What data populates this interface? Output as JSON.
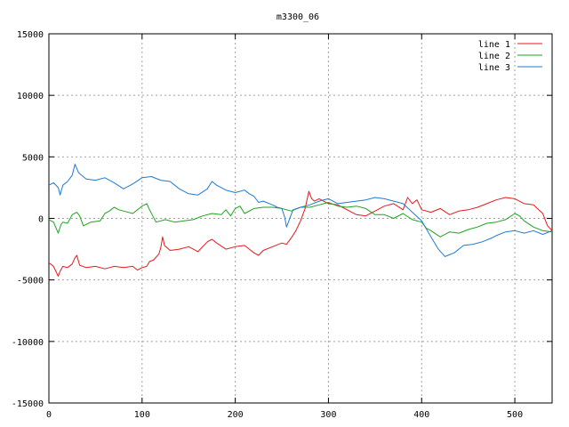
{
  "chart_data": {
    "type": "line",
    "title": "m3300_06",
    "xlabel": "",
    "ylabel": "",
    "xlim": [
      0,
      540
    ],
    "ylim": [
      -15000,
      15000
    ],
    "x_ticks": [
      0,
      100,
      200,
      300,
      400,
      500
    ],
    "y_ticks": [
      -15000,
      -10000,
      -5000,
      0,
      5000,
      10000,
      15000
    ],
    "grid": true,
    "legend_position": "top-right",
    "series": [
      {
        "name": "line 1",
        "color": "#e41a1c",
        "points": [
          [
            0,
            -3600
          ],
          [
            5,
            -3900
          ],
          [
            10,
            -4700
          ],
          [
            12,
            -4300
          ],
          [
            15,
            -3900
          ],
          [
            20,
            -4000
          ],
          [
            25,
            -3700
          ],
          [
            28,
            -3200
          ],
          [
            30,
            -3000
          ],
          [
            33,
            -3800
          ],
          [
            40,
            -4000
          ],
          [
            50,
            -3900
          ],
          [
            60,
            -4100
          ],
          [
            70,
            -3900
          ],
          [
            80,
            -4000
          ],
          [
            90,
            -3900
          ],
          [
            95,
            -4200
          ],
          [
            100,
            -4000
          ],
          [
            105,
            -3900
          ],
          [
            108,
            -3500
          ],
          [
            112,
            -3400
          ],
          [
            118,
            -2900
          ],
          [
            120,
            -2400
          ],
          [
            122,
            -1500
          ],
          [
            124,
            -2200
          ],
          [
            130,
            -2600
          ],
          [
            140,
            -2500
          ],
          [
            150,
            -2300
          ],
          [
            160,
            -2700
          ],
          [
            170,
            -1900
          ],
          [
            175,
            -1700
          ],
          [
            180,
            -2000
          ],
          [
            190,
            -2500
          ],
          [
            200,
            -2300
          ],
          [
            210,
            -2200
          ],
          [
            215,
            -2500
          ],
          [
            220,
            -2800
          ],
          [
            225,
            -3000
          ],
          [
            230,
            -2600
          ],
          [
            240,
            -2300
          ],
          [
            250,
            -2000
          ],
          [
            255,
            -2100
          ],
          [
            260,
            -1600
          ],
          [
            265,
            -1000
          ],
          [
            270,
            -200
          ],
          [
            275,
            800
          ],
          [
            279,
            2200
          ],
          [
            282,
            1600
          ],
          [
            285,
            1400
          ],
          [
            290,
            1600
          ],
          [
            300,
            1200
          ],
          [
            310,
            1100
          ],
          [
            320,
            700
          ],
          [
            330,
            300
          ],
          [
            340,
            200
          ],
          [
            350,
            600
          ],
          [
            360,
            1000
          ],
          [
            370,
            1200
          ],
          [
            380,
            700
          ],
          [
            385,
            1700
          ],
          [
            390,
            1200
          ],
          [
            395,
            1500
          ],
          [
            400,
            700
          ],
          [
            410,
            500
          ],
          [
            420,
            800
          ],
          [
            430,
            300
          ],
          [
            440,
            600
          ],
          [
            450,
            700
          ],
          [
            460,
            900
          ],
          [
            470,
            1200
          ],
          [
            480,
            1500
          ],
          [
            490,
            1700
          ],
          [
            500,
            1600
          ],
          [
            510,
            1200
          ],
          [
            520,
            1100
          ],
          [
            530,
            400
          ],
          [
            535,
            -600
          ],
          [
            540,
            -1000
          ]
        ]
      },
      {
        "name": "line 2",
        "color": "#1ea31e",
        "points": [
          [
            0,
            -100
          ],
          [
            5,
            -300
          ],
          [
            10,
            -1200
          ],
          [
            13,
            -500
          ],
          [
            15,
            -300
          ],
          [
            20,
            -400
          ],
          [
            25,
            300
          ],
          [
            30,
            500
          ],
          [
            33,
            200
          ],
          [
            37,
            -600
          ],
          [
            45,
            -300
          ],
          [
            55,
            -200
          ],
          [
            60,
            400
          ],
          [
            65,
            600
          ],
          [
            70,
            900
          ],
          [
            75,
            700
          ],
          [
            80,
            600
          ],
          [
            90,
            400
          ],
          [
            100,
            1000
          ],
          [
            105,
            1200
          ],
          [
            108,
            700
          ],
          [
            115,
            -300
          ],
          [
            125,
            -100
          ],
          [
            135,
            -300
          ],
          [
            145,
            -200
          ],
          [
            155,
            -100
          ],
          [
            165,
            200
          ],
          [
            175,
            400
          ],
          [
            185,
            300
          ],
          [
            190,
            700
          ],
          [
            195,
            200
          ],
          [
            200,
            800
          ],
          [
            205,
            1000
          ],
          [
            210,
            400
          ],
          [
            220,
            800
          ],
          [
            230,
            900
          ],
          [
            240,
            900
          ],
          [
            250,
            800
          ],
          [
            260,
            600
          ],
          [
            270,
            900
          ],
          [
            280,
            900
          ],
          [
            290,
            1100
          ],
          [
            300,
            1300
          ],
          [
            310,
            1000
          ],
          [
            320,
            900
          ],
          [
            330,
            1000
          ],
          [
            340,
            800
          ],
          [
            350,
            300
          ],
          [
            360,
            300
          ],
          [
            370,
            0
          ],
          [
            380,
            400
          ],
          [
            390,
            -100
          ],
          [
            400,
            -300
          ],
          [
            405,
            -800
          ],
          [
            410,
            -1000
          ],
          [
            420,
            -1500
          ],
          [
            430,
            -1100
          ],
          [
            440,
            -1200
          ],
          [
            450,
            -900
          ],
          [
            460,
            -700
          ],
          [
            470,
            -400
          ],
          [
            480,
            -300
          ],
          [
            490,
            -100
          ],
          [
            500,
            400
          ],
          [
            505,
            200
          ],
          [
            510,
            -200
          ],
          [
            520,
            -700
          ],
          [
            530,
            -1000
          ],
          [
            540,
            -1100
          ]
        ]
      },
      {
        "name": "line 3",
        "color": "#1f7bd0",
        "points": [
          [
            0,
            2700
          ],
          [
            5,
            2900
          ],
          [
            10,
            2500
          ],
          [
            12,
            1900
          ],
          [
            15,
            2700
          ],
          [
            20,
            3000
          ],
          [
            25,
            3500
          ],
          [
            28,
            4400
          ],
          [
            32,
            3700
          ],
          [
            40,
            3200
          ],
          [
            50,
            3100
          ],
          [
            60,
            3300
          ],
          [
            70,
            2900
          ],
          [
            80,
            2400
          ],
          [
            90,
            2800
          ],
          [
            100,
            3300
          ],
          [
            110,
            3400
          ],
          [
            120,
            3100
          ],
          [
            130,
            3000
          ],
          [
            140,
            2400
          ],
          [
            150,
            2000
          ],
          [
            160,
            1900
          ],
          [
            170,
            2400
          ],
          [
            175,
            3000
          ],
          [
            180,
            2700
          ],
          [
            190,
            2300
          ],
          [
            200,
            2100
          ],
          [
            210,
            2300
          ],
          [
            215,
            2000
          ],
          [
            220,
            1800
          ],
          [
            225,
            1300
          ],
          [
            230,
            1400
          ],
          [
            240,
            1100
          ],
          [
            245,
            900
          ],
          [
            250,
            800
          ],
          [
            253,
            100
          ],
          [
            255,
            -700
          ],
          [
            258,
            -100
          ],
          [
            262,
            700
          ],
          [
            270,
            900
          ],
          [
            280,
            1100
          ],
          [
            290,
            1400
          ],
          [
            300,
            1600
          ],
          [
            310,
            1200
          ],
          [
            320,
            1300
          ],
          [
            330,
            1400
          ],
          [
            340,
            1500
          ],
          [
            350,
            1700
          ],
          [
            360,
            1600
          ],
          [
            370,
            1400
          ],
          [
            380,
            1200
          ],
          [
            390,
            500
          ],
          [
            400,
            -200
          ],
          [
            410,
            -1500
          ],
          [
            418,
            -2500
          ],
          [
            425,
            -3100
          ],
          [
            435,
            -2800
          ],
          [
            445,
            -2200
          ],
          [
            455,
            -2100
          ],
          [
            465,
            -1900
          ],
          [
            475,
            -1600
          ],
          [
            480,
            -1400
          ],
          [
            490,
            -1100
          ],
          [
            500,
            -1000
          ],
          [
            510,
            -1200
          ],
          [
            520,
            -1000
          ],
          [
            530,
            -1300
          ],
          [
            540,
            -1000
          ]
        ]
      }
    ]
  }
}
